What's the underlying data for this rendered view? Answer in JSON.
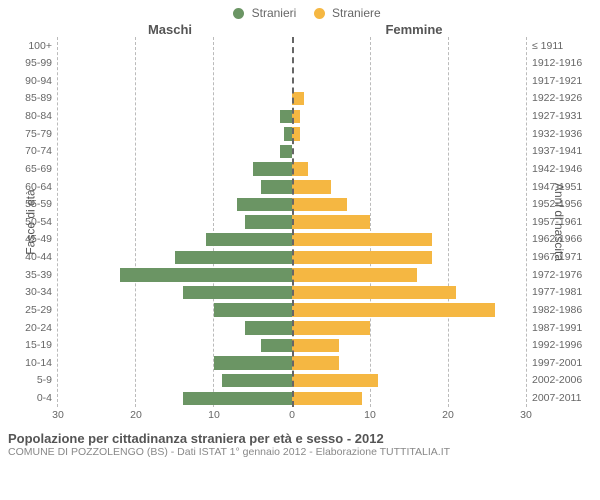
{
  "legend": {
    "male": "Stranieri",
    "female": "Straniere"
  },
  "headers": {
    "male": "Maschi",
    "female": "Femmine"
  },
  "axis_titles": {
    "left": "Fasce di età",
    "right": "Anni di nascita"
  },
  "title_main": "Popolazione per cittadinanza straniera per età e sesso - 2012",
  "title_sub": "COMUNE DI POZZOLENGO (BS) - Dati ISTAT 1° gennaio 2012 - Elaborazione TUTTITALIA.IT",
  "colors": {
    "male_bar": "#6b9564",
    "female_bar": "#f5b742",
    "grid": "#bbbbbb",
    "centerline": "#666666",
    "text": "#666666",
    "background": "#ffffff"
  },
  "chart": {
    "type": "population-pyramid",
    "xmax": 30,
    "xtick_step": 10,
    "xticks_left": [
      30,
      20,
      10,
      0
    ],
    "xticks_right": [
      0,
      10,
      20,
      30
    ],
    "bar_height_ratio": 0.76,
    "font_size_ticks": 10.5,
    "font_size_axis_title": 12,
    "font_size_legend": 12,
    "rows": [
      {
        "age": "100+",
        "birth": "≤ 1911",
        "m": 0,
        "f": 0
      },
      {
        "age": "95-99",
        "birth": "1912-1916",
        "m": 0,
        "f": 0
      },
      {
        "age": "90-94",
        "birth": "1917-1921",
        "m": 0,
        "f": 0
      },
      {
        "age": "85-89",
        "birth": "1922-1926",
        "m": 0,
        "f": 1.5
      },
      {
        "age": "80-84",
        "birth": "1927-1931",
        "m": 1.5,
        "f": 1
      },
      {
        "age": "75-79",
        "birth": "1932-1936",
        "m": 1,
        "f": 1
      },
      {
        "age": "70-74",
        "birth": "1937-1941",
        "m": 1.5,
        "f": 0
      },
      {
        "age": "65-69",
        "birth": "1942-1946",
        "m": 5,
        "f": 2
      },
      {
        "age": "60-64",
        "birth": "1947-1951",
        "m": 4,
        "f": 5
      },
      {
        "age": "55-59",
        "birth": "1952-1956",
        "m": 7,
        "f": 7
      },
      {
        "age": "50-54",
        "birth": "1957-1961",
        "m": 6,
        "f": 10
      },
      {
        "age": "45-49",
        "birth": "1962-1966",
        "m": 11,
        "f": 18
      },
      {
        "age": "40-44",
        "birth": "1967-1971",
        "m": 15,
        "f": 18
      },
      {
        "age": "35-39",
        "birth": "1972-1976",
        "m": 22,
        "f": 16
      },
      {
        "age": "30-34",
        "birth": "1977-1981",
        "m": 14,
        "f": 21
      },
      {
        "age": "25-29",
        "birth": "1982-1986",
        "m": 10,
        "f": 26
      },
      {
        "age": "20-24",
        "birth": "1987-1991",
        "m": 6,
        "f": 10
      },
      {
        "age": "15-19",
        "birth": "1992-1996",
        "m": 4,
        "f": 6
      },
      {
        "age": "10-14",
        "birth": "1997-2001",
        "m": 10,
        "f": 6
      },
      {
        "age": "5-9",
        "birth": "2002-2006",
        "m": 9,
        "f": 11
      },
      {
        "age": "0-4",
        "birth": "2007-2011",
        "m": 14,
        "f": 9
      }
    ]
  }
}
